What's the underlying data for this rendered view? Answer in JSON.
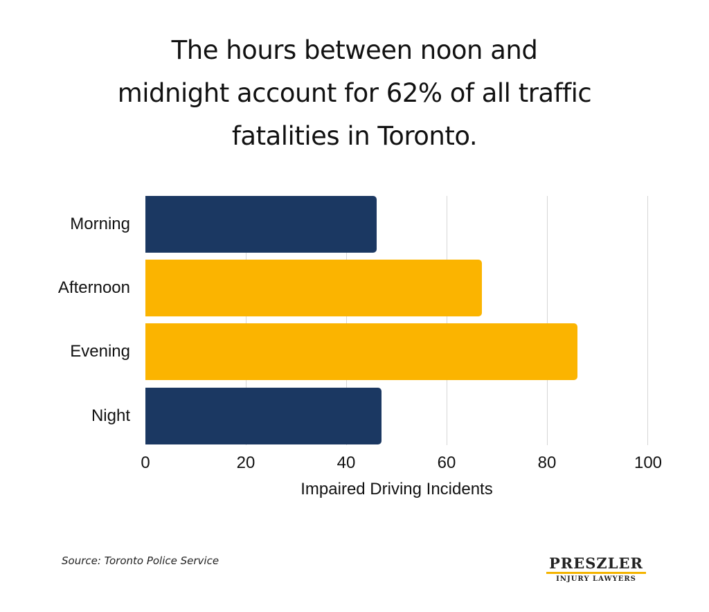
{
  "title": {
    "lines": [
      "The hours between noon and",
      "midnight account for 62% of all traffic",
      "fatalities in Toronto."
    ]
  },
  "colors": {
    "navy": "#1b3862",
    "gold": "#fbb400",
    "grid": "#d6d6d6"
  },
  "axis": {
    "x_ticks": [
      "0",
      "20",
      "40",
      "60",
      "80",
      "100"
    ],
    "x_label": "Impaired Driving Incidents"
  },
  "source": "Source: Toronto Police Service",
  "logo": {
    "name": "PRESZLER",
    "subtitle": "INJURY LAWYERS"
  },
  "chart_data": {
    "type": "bar",
    "orientation": "horizontal",
    "title": "The hours between noon and midnight account for 62% of all traffic fatalities in Toronto.",
    "categories": [
      "Morning",
      "Afternoon",
      "Evening",
      "Night"
    ],
    "values": [
      46,
      67,
      86,
      47
    ],
    "bar_colors": [
      "#1b3862",
      "#fbb400",
      "#fbb400",
      "#1b3862"
    ],
    "xlabel": "Impaired Driving Incidents",
    "ylabel": "",
    "xlim": [
      0,
      100
    ],
    "x_ticks": [
      0,
      20,
      40,
      60,
      80,
      100
    ],
    "grid": true,
    "legend": null,
    "source": "Toronto Police Service"
  }
}
